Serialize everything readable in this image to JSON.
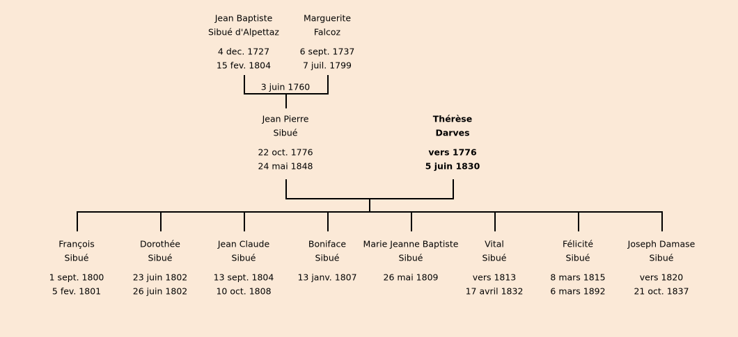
{
  "grandparents": [
    {
      "name": [
        "Jean Baptiste",
        "Sibué d'Alpettaz"
      ],
      "dates": [
        "4 dec. 1727",
        "15 fev. 1804"
      ]
    },
    {
      "name": [
        "Marguerite",
        "Falcoz"
      ],
      "dates": [
        "6 sept. 1737",
        "7 juil. 1799"
      ]
    }
  ],
  "marriage": "3 juin 1760",
  "parents": [
    {
      "name": [
        "Jean Pierre",
        "Sibué"
      ],
      "dates": [
        "22 oct. 1776",
        "24 mai 1848"
      ]
    },
    {
      "name": [
        "Thérèse",
        "Darves"
      ],
      "dates": [
        "vers 1776",
        "5 juin 1830"
      ]
    }
  ],
  "children": [
    {
      "name": [
        "François",
        "Sibué"
      ],
      "dates": [
        "1 sept. 1800",
        "5 fev. 1801"
      ]
    },
    {
      "name": [
        "Dorothée",
        "Sibué"
      ],
      "dates": [
        "23 juin 1802",
        "26 juin 1802"
      ]
    },
    {
      "name": [
        "Jean Claude",
        "Sibué"
      ],
      "dates": [
        "13 sept. 1804",
        "10 oct. 1808"
      ]
    },
    {
      "name": [
        "Boniface",
        "Sibué"
      ],
      "dates": [
        "13 janv. 1807"
      ]
    },
    {
      "name": [
        "Marie Jeanne Baptiste",
        "Sibué"
      ],
      "dates": [
        "26 mai 1809"
      ]
    },
    {
      "name": [
        "Vital",
        "Sibué"
      ],
      "dates": [
        "vers 1813",
        "17 avril 1832"
      ]
    },
    {
      "name": [
        "Félicité",
        "Sibué"
      ],
      "dates": [
        "8 mars 1815",
        "6 mars 1892"
      ]
    },
    {
      "name": [
        "Joseph Damase",
        "Sibué"
      ],
      "dates": [
        "vers 1820",
        "21 oct. 1837"
      ]
    }
  ]
}
